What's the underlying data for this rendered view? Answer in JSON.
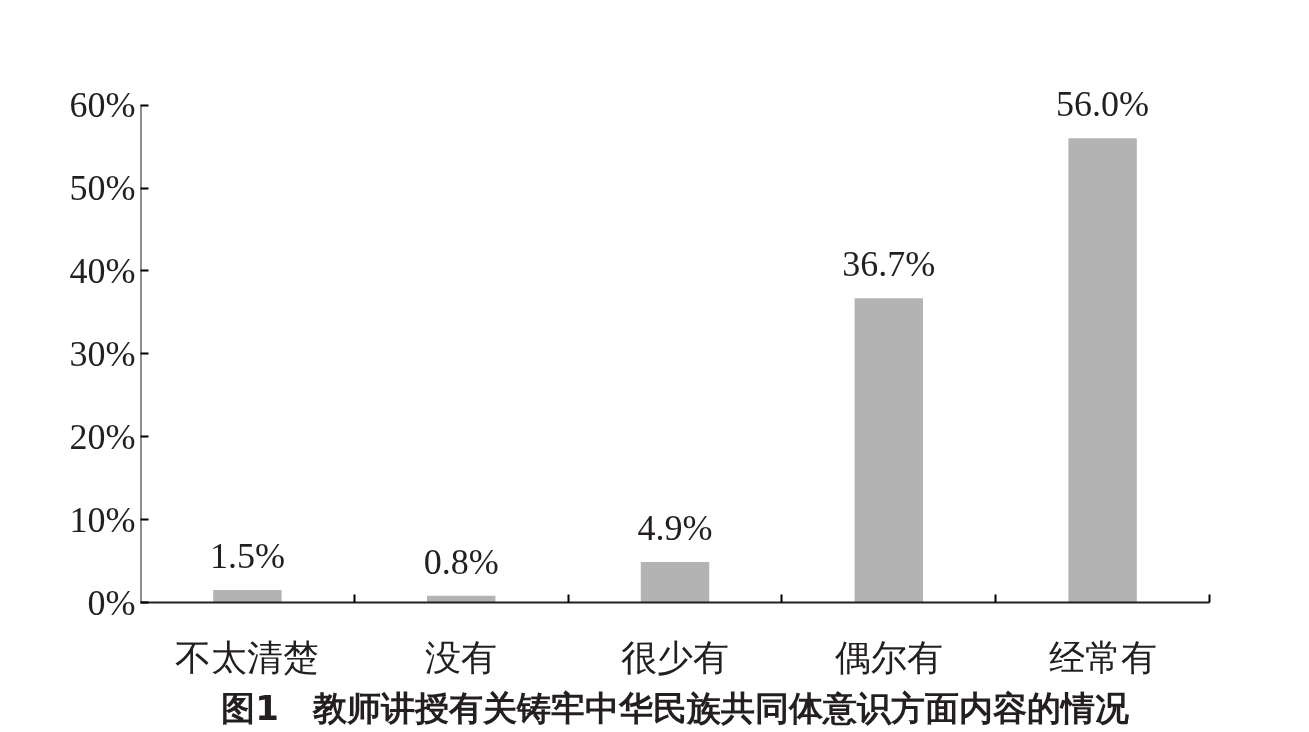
{
  "chart_data": {
    "type": "bar",
    "title": "图1　教师讲授有关铸牢中华民族共同体意识方面内容的情况",
    "categories": [
      "不太清楚",
      "没有",
      "很少有",
      "偶尔有",
      "经常有"
    ],
    "values": [
      1.5,
      0.8,
      4.9,
      36.7,
      56.0
    ],
    "value_labels": [
      "1.5%",
      "0.8%",
      "4.9%",
      "36.7%",
      "56.0%"
    ],
    "color": "#b3b3b3",
    "ylim": [
      0,
      60
    ],
    "yticks": [
      {
        "value": 0,
        "label": "0%"
      },
      {
        "value": 10,
        "label": "10%"
      },
      {
        "value": 20,
        "label": "20%"
      },
      {
        "value": 30,
        "label": "30%"
      },
      {
        "value": 40,
        "label": "40%"
      },
      {
        "value": 50,
        "label": "50%"
      },
      {
        "value": 60,
        "label": "60%"
      }
    ],
    "grid": false
  }
}
